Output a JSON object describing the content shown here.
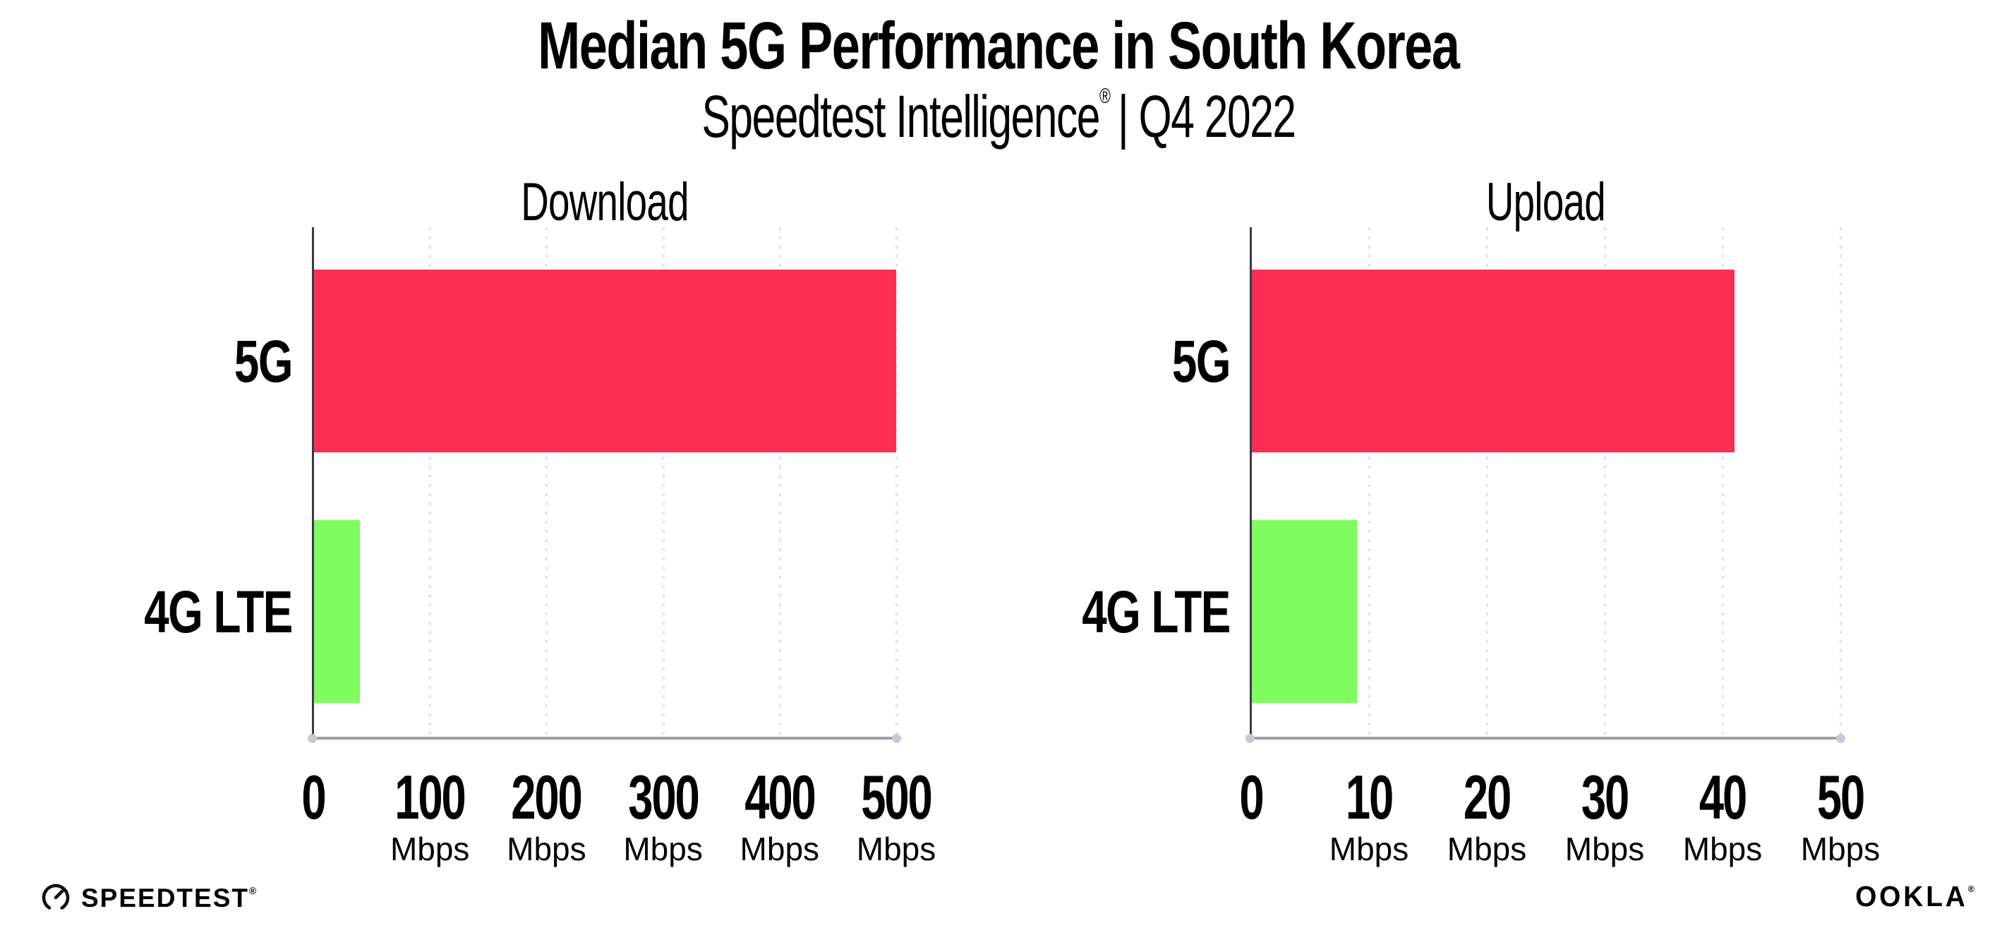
{
  "header": {
    "title": "Median 5G Performance in South Korea",
    "subtitle_product": "Speedtest Intelligence",
    "subtitle_reg": "®",
    "subtitle_rest": "| Q4 2022"
  },
  "chart_data": [
    {
      "type": "bar",
      "orientation": "horizontal",
      "title": "Download",
      "categories": [
        "5G",
        "4G LTE"
      ],
      "values": [
        500,
        40
      ],
      "unit": "Mbps",
      "xlim": [
        0,
        500
      ],
      "xticks": [
        0,
        100,
        200,
        300,
        400,
        500
      ],
      "tick_unit_label": "Mbps",
      "bar_colors": [
        "#FC2E55",
        "#80FB60"
      ],
      "grid": "dotted-vertical",
      "legend": "none"
    },
    {
      "type": "bar",
      "orientation": "horizontal",
      "title": "Upload",
      "categories": [
        "5G",
        "4G LTE"
      ],
      "values": [
        41,
        9
      ],
      "unit": "Mbps",
      "xlim": [
        0,
        50
      ],
      "xticks": [
        0,
        10,
        20,
        30,
        40,
        50
      ],
      "tick_unit_label": "Mbps",
      "bar_colors": [
        "#FC2E55",
        "#80FB60"
      ],
      "grid": "dotted-vertical",
      "legend": "none"
    }
  ],
  "footer": {
    "speedtest_label": "SPEEDTEST",
    "speedtest_reg": "®",
    "ookla_label": "OOKLA",
    "ookla_reg": "®"
  },
  "colors": {
    "bar_5g": "#FC2E55",
    "bar_4g_lte": "#80FB60",
    "gridline": "#DFE0EA",
    "axis_left_spine": "#3A3A44",
    "axis_bottom_spine": "#9E9EA4",
    "text": "#000000",
    "background": "#FFFFFF"
  }
}
